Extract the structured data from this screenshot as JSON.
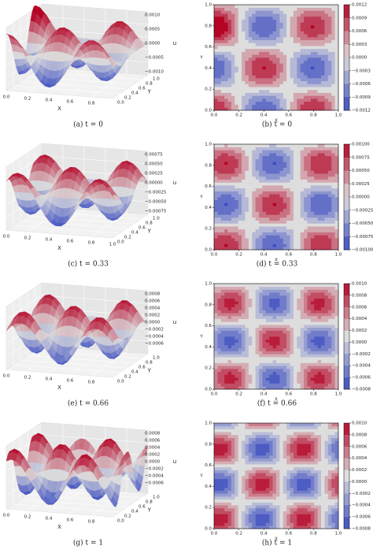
{
  "rows": [
    {
      "surface": {
        "caption": "(a) t = 0",
        "xticks": [
          "0.0",
          "0.2",
          "0.4",
          "0.6",
          "0.8"
        ],
        "yticks": [
          "0.0",
          "0.2",
          "0.4",
          "0.6",
          "0.8",
          "1.0"
        ],
        "zticks": [
          "0.0010",
          "0.0005",
          "0.0000",
          "−0.0005",
          "−0.0010"
        ],
        "xlabel": "X",
        "ylabel": "Y",
        "zlabel": "u"
      },
      "contour": {
        "caption": "(b) t = 0",
        "xticks": [
          "0.0",
          "0.2",
          "0.4",
          "0.6",
          "0.8",
          "1.0"
        ],
        "yticks": [
          "0.0",
          "0.2",
          "0.4",
          "0.6",
          "0.8",
          "1.0"
        ],
        "cbticks": [
          "0.0012",
          "0.0009",
          "0.0006",
          "0.0003",
          "0.0000",
          "−0.0003",
          "−0.0006",
          "−0.0009",
          "−0.0012"
        ],
        "xlabel": "X",
        "ylabel": "Y"
      }
    },
    {
      "surface": {
        "caption": "(c) t = 0.33",
        "xticks": [
          "0.0",
          "0.2",
          "0.4",
          "0.6",
          "0.8",
          "1.0"
        ],
        "yticks": [
          "0.0",
          "0.2",
          "0.4",
          "0.6",
          "0.8",
          "1.0"
        ],
        "zticks": [
          "0.00075",
          "0.00050",
          "0.00025",
          "0.00000",
          "−0.00025",
          "−0.00050",
          "−0.00075"
        ],
        "xlabel": "X",
        "ylabel": "Y",
        "zlabel": "u"
      },
      "contour": {
        "caption": "(d) t = 0.33",
        "xticks": [
          "0.0",
          "0.2",
          "0.4",
          "0.6",
          "0.8",
          "1.0"
        ],
        "yticks": [
          "0.0",
          "0.2",
          "0.4",
          "0.6",
          "0.8",
          "1.0"
        ],
        "cbticks": [
          "0.00100",
          "0.00075",
          "0.00050",
          "0.00025",
          "0.00000",
          "−0.00025",
          "−0.00050",
          "−0.00075",
          "−0.00100"
        ],
        "xlabel": "X",
        "ylabel": "Y"
      }
    },
    {
      "surface": {
        "caption": "(e) t = 0.66",
        "xticks": [
          "0.0",
          "0.2",
          "0.4",
          "0.6",
          "0.8"
        ],
        "yticks": [
          "0.0",
          "0.2",
          "0.4",
          "0.6",
          "0.8",
          "1.0"
        ],
        "zticks": [
          "0.0008",
          "0.0006",
          "0.0004",
          "0.0002",
          "0.0000",
          "−0.0002",
          "−0.0004",
          "−0.0006"
        ],
        "xlabel": "X",
        "ylabel": "Y",
        "zlabel": "u"
      },
      "contour": {
        "caption": "(f) t = 0.66",
        "xticks": [
          "0.0",
          "0.2",
          "0.4",
          "0.6",
          "0.8",
          "1.0"
        ],
        "yticks": [
          "0.0",
          "0.2",
          "0.4",
          "0.6",
          "0.8",
          "1.0"
        ],
        "cbticks": [
          "0.0010",
          "0.0008",
          "0.0006",
          "0.0004",
          "0.0002",
          "0.0000",
          "−0.0002",
          "−0.0004",
          "−0.0006",
          "−0.0008"
        ],
        "xlabel": "X",
        "ylabel": "Y"
      }
    },
    {
      "surface": {
        "caption": "(g) t = 1",
        "xticks": [
          "0.0",
          "0.2",
          "0.4",
          "0.6",
          "0.8"
        ],
        "yticks": [
          "0.0",
          "0.2",
          "0.4",
          "0.6",
          "0.8",
          "1.0"
        ],
        "zticks": [
          "0.0008",
          "0.0006",
          "0.0004",
          "0.0002",
          "0.0000",
          "−0.0002",
          "−0.0004",
          "−0.0006"
        ],
        "xlabel": "X",
        "ylabel": "Y",
        "zlabel": "u"
      },
      "contour": {
        "caption": "(h) t = 1",
        "xticks": [
          "0.0",
          "0.2",
          "0.4",
          "0.6",
          "0.8",
          "1.0"
        ],
        "yticks": [
          "0.0",
          "0.2",
          "0.4",
          "0.6",
          "0.8",
          "1.0"
        ],
        "cbticks": [
          "0.0010",
          "0.0008",
          "0.0006",
          "0.0004",
          "0.0002",
          "0.0000",
          "−0.0002",
          "−0.0004",
          "−0.0006",
          "−0.0008"
        ],
        "xlabel": "X",
        "ylabel": "Y"
      }
    }
  ]
}
